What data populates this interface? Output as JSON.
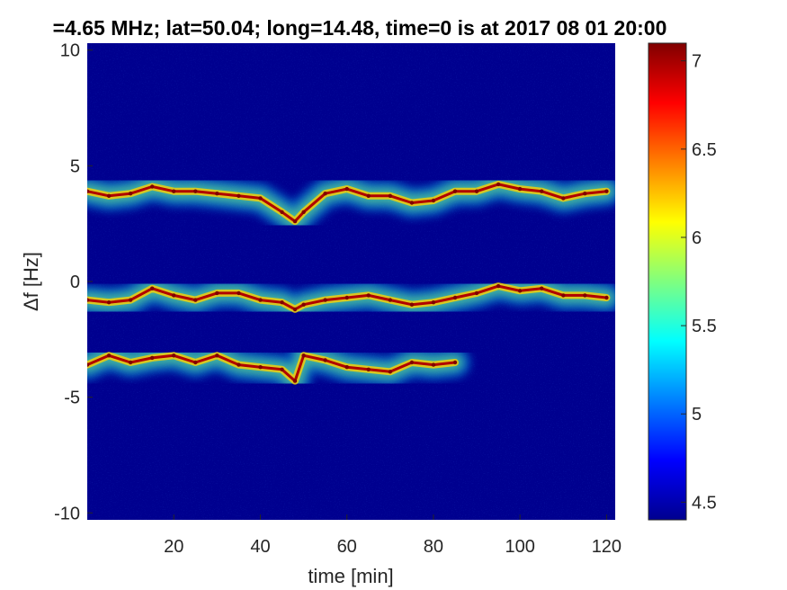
{
  "chart_data": {
    "type": "heatmap",
    "title": "=4.65 MHz;  lat=50.04; long=14.48, time=0 is at 2017 08 01 20:00",
    "xlabel": "time [min]",
    "ylabel": "Δf [Hz]",
    "xlim": [
      0,
      122
    ],
    "ylim": [
      -10.3,
      10.3
    ],
    "xticks": [
      "20",
      "40",
      "60",
      "80",
      "100",
      "120"
    ],
    "yticks": [
      "10",
      "5",
      "0",
      "-5",
      "-10"
    ],
    "colorbar": {
      "range": [
        4.4,
        7.1
      ],
      "ticks": [
        "7",
        "6.5",
        "6",
        "5.5",
        "5",
        "4.5"
      ]
    },
    "series": [
      {
        "values": [
          [
            0,
            3.9
          ],
          [
            5,
            3.7
          ],
          [
            10,
            3.8
          ],
          [
            15,
            4.1
          ],
          [
            20,
            3.9
          ],
          [
            25,
            3.9
          ],
          [
            30,
            3.8
          ],
          [
            35,
            3.7
          ],
          [
            40,
            3.6
          ],
          [
            45,
            3.0
          ],
          [
            48,
            2.6
          ],
          [
            50,
            3.0
          ],
          [
            55,
            3.8
          ],
          [
            60,
            4.0
          ],
          [
            65,
            3.7
          ],
          [
            70,
            3.7
          ],
          [
            75,
            3.4
          ],
          [
            80,
            3.5
          ],
          [
            85,
            3.9
          ],
          [
            90,
            3.9
          ],
          [
            95,
            4.2
          ],
          [
            100,
            4.0
          ],
          [
            105,
            3.9
          ],
          [
            110,
            3.6
          ],
          [
            115,
            3.8
          ],
          [
            120,
            3.9
          ]
        ]
      },
      {
        "values": [
          [
            0,
            -0.8
          ],
          [
            5,
            -0.9
          ],
          [
            10,
            -0.8
          ],
          [
            15,
            -0.3
          ],
          [
            20,
            -0.6
          ],
          [
            25,
            -0.8
          ],
          [
            30,
            -0.5
          ],
          [
            35,
            -0.5
          ],
          [
            40,
            -0.8
          ],
          [
            45,
            -0.9
          ],
          [
            48,
            -1.2
          ],
          [
            50,
            -1.0
          ],
          [
            55,
            -0.8
          ],
          [
            60,
            -0.7
          ],
          [
            65,
            -0.6
          ],
          [
            70,
            -0.8
          ],
          [
            75,
            -1.0
          ],
          [
            80,
            -0.9
          ],
          [
            85,
            -0.7
          ],
          [
            90,
            -0.5
          ],
          [
            95,
            -0.2
          ],
          [
            100,
            -0.4
          ],
          [
            105,
            -0.3
          ],
          [
            110,
            -0.6
          ],
          [
            115,
            -0.6
          ],
          [
            120,
            -0.7
          ]
        ]
      },
      {
        "values": [
          [
            0,
            -3.6
          ],
          [
            5,
            -3.2
          ],
          [
            10,
            -3.5
          ],
          [
            15,
            -3.3
          ],
          [
            20,
            -3.2
          ],
          [
            25,
            -3.5
          ],
          [
            30,
            -3.2
          ],
          [
            35,
            -3.6
          ],
          [
            40,
            -3.7
          ],
          [
            45,
            -3.8
          ],
          [
            48,
            -4.3
          ],
          [
            50,
            -3.2
          ],
          [
            55,
            -3.4
          ],
          [
            60,
            -3.7
          ],
          [
            65,
            -3.8
          ],
          [
            70,
            -3.9
          ],
          [
            75,
            -3.5
          ],
          [
            80,
            -3.6
          ],
          [
            85,
            -3.5
          ]
        ]
      }
    ]
  }
}
